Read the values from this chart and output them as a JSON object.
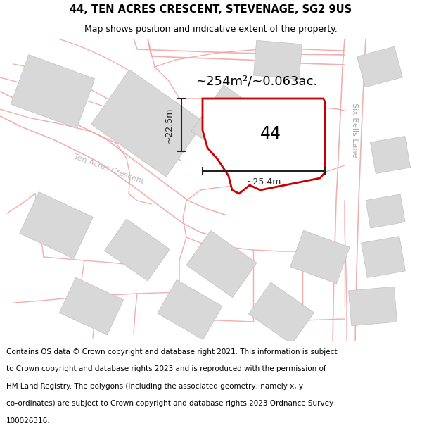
{
  "title": "44, TEN ACRES CRESCENT, STEVENAGE, SG2 9US",
  "subtitle": "Map shows position and indicative extent of the property.",
  "footer_lines": [
    "Contains OS data © Crown copyright and database right 2021. This information is subject",
    "to Crown copyright and database rights 2023 and is reproduced with the permission of",
    "HM Land Registry. The polygons (including the associated geometry, namely x, y",
    "co-ordinates) are subject to Crown copyright and database rights 2023 Ordnance Survey",
    "100026316."
  ],
  "bg_color": "#f2f0ee",
  "building_color": "#d8d8d8",
  "boundary_color": "#cc0000",
  "dim_line_color": "#222222",
  "road_line_color": "#f0b0b0",
  "area_text": "~254m²/~0.063ac.",
  "label_44": "44",
  "dim_height": "~22.5m",
  "dim_width": "~25.4m",
  "street_label_lane": "Six Bells Lane",
  "street_label_crescent": "Ten Acres Crescent",
  "title_fontsize": 10.5,
  "subtitle_fontsize": 9,
  "footer_fontsize": 7.5,
  "area_fontsize": 13,
  "label_fontsize": 17,
  "dim_fontsize": 9,
  "street_fontsize": 8
}
